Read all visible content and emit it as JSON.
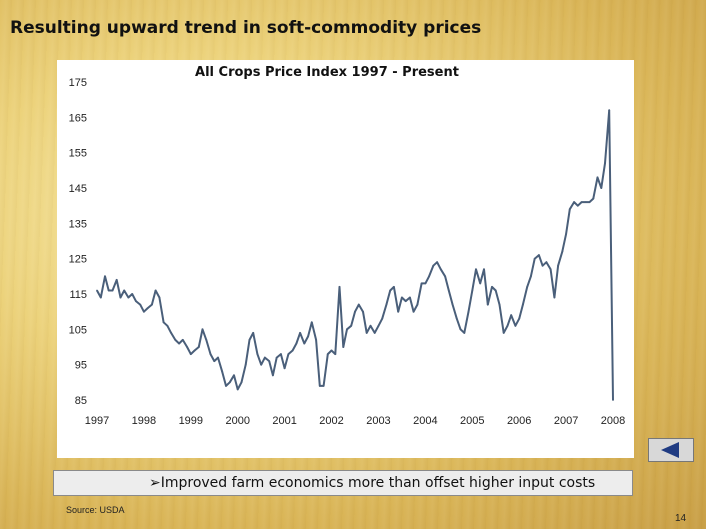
{
  "slide": {
    "title": "Resulting upward trend in soft-commodity prices",
    "bullet": "➢Improved farm economics more than offset higher input costs",
    "source": "Source:  USDA",
    "page_number": "14"
  },
  "nav": {
    "icon": "left-arrow-icon",
    "color": "#1f3b82"
  },
  "colors": {
    "line": "#4a5f7a",
    "panel": "#ffffff"
  },
  "chart_data": {
    "type": "line",
    "title": "All Crops Price Index 1997 - Present",
    "xlabel": "",
    "ylabel": "",
    "xlim": [
      1997,
      2008
    ],
    "ylim": [
      85,
      175
    ],
    "x_ticks": [
      "1997",
      "1998",
      "1999",
      "2000",
      "2001",
      "2002",
      "2003",
      "2004",
      "2005",
      "2006",
      "2007",
      "2008"
    ],
    "y_ticks": [
      175,
      165,
      155,
      145,
      135,
      125,
      115,
      105,
      95,
      85
    ],
    "grid": false,
    "legend": "none",
    "series": [
      {
        "x": [
          1997.0,
          1997.08,
          1997.17,
          1997.25,
          1997.33,
          1997.42,
          1997.5,
          1997.58,
          1997.67,
          1997.75,
          1997.83,
          1997.92,
          1998.0,
          1998.08,
          1998.17,
          1998.25,
          1998.33,
          1998.42,
          1998.5,
          1998.58,
          1998.67,
          1998.75,
          1998.83,
          1998.92,
          1999.0,
          1999.08,
          1999.17,
          1999.25,
          1999.33,
          1999.42,
          1999.5,
          1999.58,
          1999.67,
          1999.75,
          1999.83,
          1999.92,
          2000.0,
          2000.08,
          2000.17,
          2000.25,
          2000.33,
          2000.42,
          2000.5,
          2000.58,
          2000.67,
          2000.75,
          2000.83,
          2000.92,
          2001.0,
          2001.08,
          2001.17,
          2001.25,
          2001.33,
          2001.42,
          2001.5,
          2001.58,
          2001.67,
          2001.75,
          2001.83,
          2001.92,
          2002.0,
          2002.08,
          2002.17,
          2002.25,
          2002.33,
          2002.42,
          2002.5,
          2002.58,
          2002.67,
          2002.75,
          2002.83,
          2002.92,
          2003.0,
          2003.08,
          2003.17,
          2003.25,
          2003.33,
          2003.42,
          2003.5,
          2003.58,
          2003.67,
          2003.75,
          2003.83,
          2003.92,
          2004.0,
          2004.08,
          2004.17,
          2004.25,
          2004.33,
          2004.42,
          2004.5,
          2004.58,
          2004.67,
          2004.75,
          2004.83,
          2004.92,
          2005.0,
          2005.08,
          2005.17,
          2005.25,
          2005.33,
          2005.42,
          2005.5,
          2005.58,
          2005.67,
          2005.75,
          2005.83,
          2005.92,
          2006.0,
          2006.08,
          2006.17,
          2006.25,
          2006.33,
          2006.42,
          2006.5,
          2006.58,
          2006.67,
          2006.75,
          2006.83,
          2006.92,
          2007.0,
          2007.08,
          2007.17,
          2007.25,
          2007.33,
          2007.42,
          2007.5,
          2007.58,
          2007.67,
          2007.75,
          2007.83,
          2007.92,
          2008.0
        ],
        "values": [
          116,
          114,
          120,
          116,
          116,
          119,
          114,
          116,
          114,
          115,
          113,
          112,
          110,
          111,
          112,
          116,
          114,
          107,
          106,
          104,
          102,
          101,
          102,
          100,
          98,
          99,
          100,
          105,
          102,
          98,
          96,
          97,
          93,
          89,
          90,
          92,
          88,
          90,
          95,
          102,
          104,
          98,
          95,
          97,
          96,
          92,
          97,
          98,
          94,
          98,
          99,
          101,
          104,
          101,
          103,
          107,
          102,
          89,
          89,
          98,
          99,
          98,
          117,
          100,
          105,
          106,
          110,
          112,
          110,
          104,
          106,
          104,
          106,
          108,
          112,
          116,
          117,
          110,
          114,
          113,
          114,
          110,
          112,
          118,
          118,
          120,
          123,
          124,
          122,
          120,
          116,
          112,
          108,
          105,
          104,
          110,
          116,
          122,
          118,
          122,
          112,
          117,
          116,
          112,
          104,
          106,
          109,
          106,
          108,
          112,
          117,
          120,
          125,
          126,
          123,
          124,
          122,
          114,
          123,
          127,
          132,
          139,
          141,
          140,
          141,
          141,
          141,
          142,
          148,
          145,
          152,
          167,
          85
        ]
      }
    ]
  }
}
